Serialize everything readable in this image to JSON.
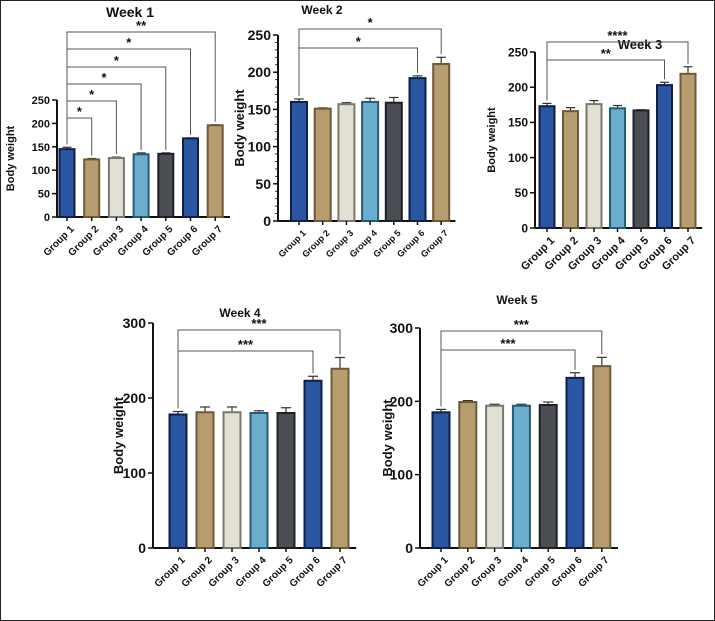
{
  "chart_data": [
    {
      "type": "bar",
      "title": "Week 1",
      "ylabel": "Body weight",
      "categories": [
        "Group 1",
        "Group 2",
        "Group 3",
        "Group 4",
        "Group 5",
        "Group 6",
        "Group 7"
      ],
      "values": [
        145,
        123,
        126,
        134,
        135,
        168,
        196
      ],
      "errors": [
        4,
        2,
        2,
        3,
        2,
        1,
        1
      ],
      "ylim": [
        0,
        250
      ],
      "yticks": [
        0,
        50,
        100,
        150,
        200,
        250
      ],
      "significance": [
        {
          "from": "Group 1",
          "to": "Group 2",
          "label": "*"
        },
        {
          "from": "Group 1",
          "to": "Group 3",
          "label": "*"
        },
        {
          "from": "Group 1",
          "to": "Group 4",
          "label": "*"
        },
        {
          "from": "Group 1",
          "to": "Group 5",
          "label": "*"
        },
        {
          "from": "Group 1",
          "to": "Group 6",
          "label": "*"
        },
        {
          "from": "Group 1",
          "to": "Group 7",
          "label": "**"
        }
      ]
    },
    {
      "type": "bar",
      "title": "Week 2",
      "ylabel": "Body weight",
      "categories": [
        "Group 1",
        "Group 2",
        "Group 3",
        "Group 4",
        "Group 5",
        "Group 6",
        "Group 7"
      ],
      "values": [
        160,
        151,
        157,
        160,
        159,
        192,
        211
      ],
      "errors": [
        4,
        1,
        2,
        5,
        7,
        3,
        9
      ],
      "ylim": [
        0,
        250
      ],
      "yticks": [
        0,
        50,
        100,
        150,
        200,
        250
      ],
      "significance": [
        {
          "from": "Group 1",
          "to": "Group 6",
          "label": "*"
        },
        {
          "from": "Group 1",
          "to": "Group 7",
          "label": "*"
        }
      ]
    },
    {
      "type": "bar",
      "title": "Week 3",
      "ylabel": "Body weight",
      "categories": [
        "Group 1",
        "Group 2",
        "Group 3",
        "Group 4",
        "Group 5",
        "Group 6",
        "Group 7"
      ],
      "values": [
        173,
        166,
        176,
        170,
        167,
        203,
        219
      ],
      "errors": [
        4,
        5,
        5,
        4,
        1,
        4,
        10
      ],
      "ylim": [
        0,
        250
      ],
      "yticks": [
        0,
        50,
        100,
        150,
        200,
        250
      ],
      "significance": [
        {
          "from": "Group 1",
          "to": "Group 6",
          "label": "**"
        },
        {
          "from": "Group 1",
          "to": "Group 7",
          "label": "****"
        }
      ]
    },
    {
      "type": "bar",
      "title": "Week 4",
      "ylabel": "Body weight",
      "categories": [
        "Group 1",
        "Group 2",
        "Group 3",
        "Group 4",
        "Group 5",
        "Group 6",
        "Group 7"
      ],
      "values": [
        178,
        181,
        181,
        180,
        180,
        223,
        239
      ],
      "errors": [
        4,
        7,
        7,
        3,
        7,
        6,
        15
      ],
      "ylim": [
        0,
        300
      ],
      "yticks": [
        0,
        100,
        200,
        300
      ],
      "significance": [
        {
          "from": "Group 1",
          "to": "Group 6",
          "label": "***"
        },
        {
          "from": "Group 1",
          "to": "Group 7",
          "label": "***"
        }
      ]
    },
    {
      "type": "bar",
      "title": "Week 5",
      "ylabel": "Body weight",
      "categories": [
        "Group 1",
        "Group 2",
        "Group 3",
        "Group 4",
        "Group 5",
        "Group 6",
        "Group 7"
      ],
      "values": [
        185,
        199,
        194,
        194,
        195,
        232,
        248
      ],
      "errors": [
        4,
        2,
        2,
        2,
        4,
        7,
        12
      ],
      "ylim": [
        0,
        300
      ],
      "yticks": [
        0,
        100,
        200,
        300
      ],
      "significance": [
        {
          "from": "Group 1",
          "to": "Group 6",
          "label": "***"
        },
        {
          "from": "Group 1",
          "to": "Group 7",
          "label": "***"
        }
      ]
    }
  ],
  "colors": {
    "bar_fills": [
      "#2b56a3",
      "#b69c6e",
      "#e2dfd3",
      "#6badcd",
      "#4b4e54",
      "#2b56a3",
      "#b69c6e"
    ],
    "bar_strokes": [
      "#0f1f45",
      "#6e5a36",
      "#7a776d",
      "#245c75",
      "#1e2024",
      "#0f1f45",
      "#6e5a36"
    ]
  }
}
